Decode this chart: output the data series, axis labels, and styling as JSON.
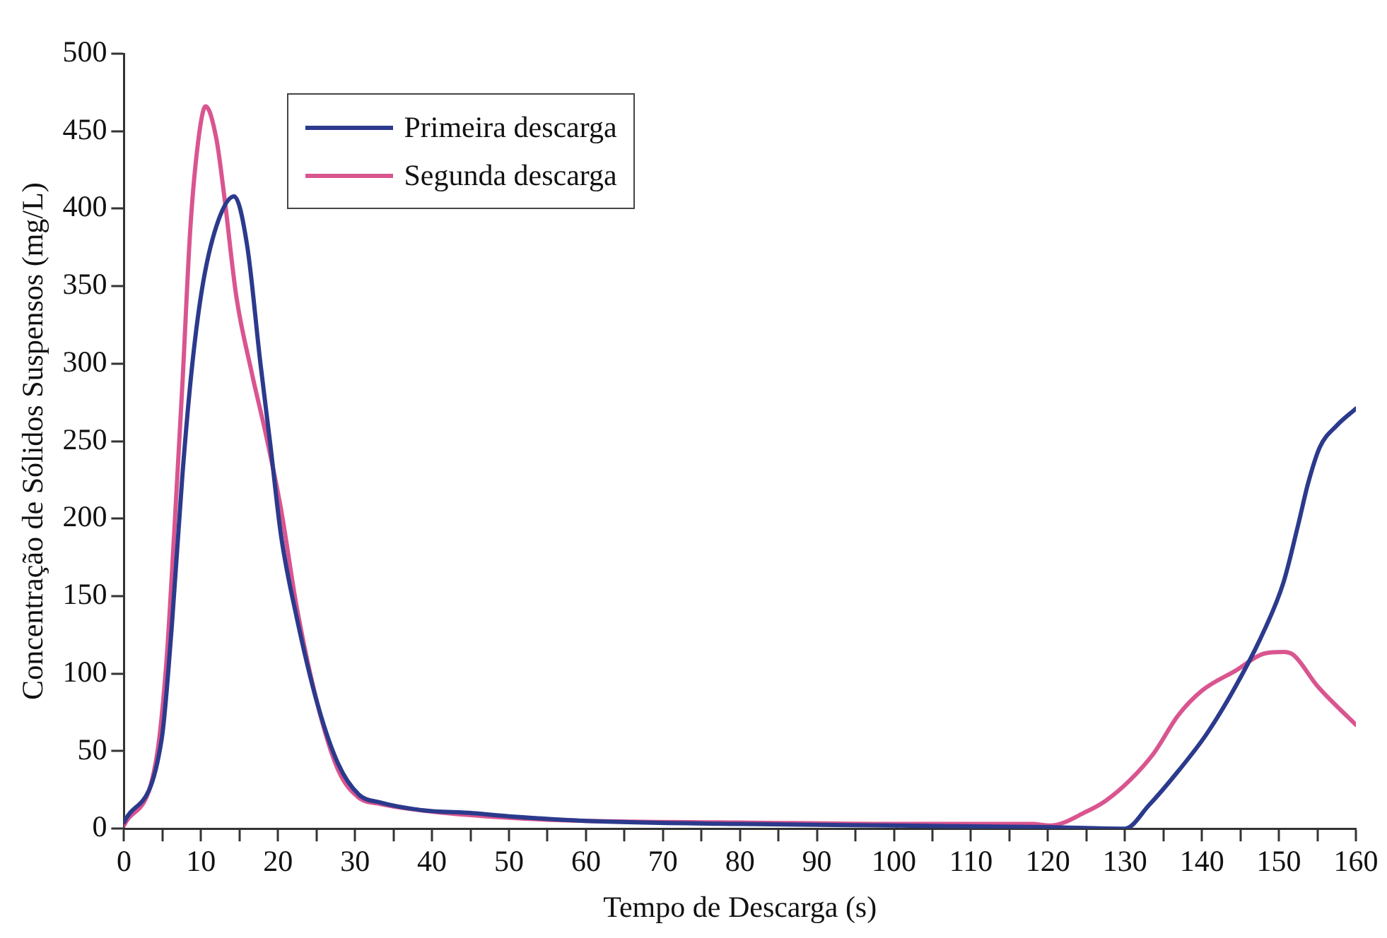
{
  "chart_data": {
    "type": "line",
    "xlabel": "Tempo de Descarga (s)",
    "ylabel": "Concentração de Sólidos Suspensos (mg/L)",
    "xlim": [
      0,
      160
    ],
    "xticks": [
      0,
      {
        "value": 5,
        "label": null
      },
      10,
      {
        "value": 15,
        "label": null
      },
      20,
      {
        "value": 25,
        "label": null
      },
      30,
      {
        "value": 35,
        "label": null
      },
      40,
      {
        "value": 45,
        "label": null
      },
      50,
      {
        "value": 55,
        "label": null
      },
      60,
      {
        "value": 65,
        "label": null
      },
      70,
      {
        "value": 75,
        "label": null
      },
      80,
      {
        "value": 85,
        "label": null
      },
      90,
      {
        "value": 95,
        "label": null
      },
      100,
      {
        "value": 105,
        "label": null
      },
      110,
      {
        "value": 115,
        "label": null
      },
      120,
      {
        "value": 125,
        "label": null
      },
      130,
      {
        "value": 135,
        "label": null
      },
      140,
      {
        "value": 145,
        "label": null
      },
      150,
      {
        "value": 155,
        "label": null
      },
      160
    ],
    "ylim": [
      0,
      500
    ],
    "yticks": [
      0,
      50,
      100,
      150,
      200,
      250,
      300,
      350,
      400,
      450,
      500
    ],
    "grid": false,
    "legend": "top left",
    "marker": "none",
    "line_style": "solid",
    "series": [
      {
        "name": "Primeira descarga",
        "color": "#2b3a8c",
        "x": [
          0,
          4.9,
          6.2,
          7.6,
          8.9,
          10.3,
          12.3,
          14.3,
          16,
          17.7,
          19,
          20.4,
          22.4,
          25.1,
          27.8,
          30.5,
          33.2,
          38.6,
          45.3,
          50,
          60,
          80,
          100,
          120,
          130,
          133.1,
          136.9,
          140.6,
          144.4,
          148.1,
          150.6,
          152.5,
          153.8,
          155.3,
          157.5,
          160
        ],
        "values": [
          4,
          58,
          130,
          229,
          301,
          353,
          393,
          408,
          376,
          301,
          248,
          189,
          137,
          81,
          42,
          22,
          17,
          12,
          10,
          8,
          5,
          3,
          2,
          1,
          0,
          15,
          37,
          61,
          92,
          128,
          159,
          196,
          223,
          246,
          260,
          271
        ]
      },
      {
        "name": "Segunda descarga",
        "color": "#d9558f",
        "x": [
          0,
          4.2,
          5.5,
          6.5,
          7.6,
          8.6,
          9.6,
          10.6,
          12,
          13,
          14.6,
          16.6,
          18.4,
          20.4,
          22.4,
          25.1,
          27.8,
          30.5,
          33.2,
          40,
          50,
          60,
          80,
          100,
          118,
          120.3,
          125,
          127.5,
          130.6,
          133.8,
          136.9,
          140,
          144.4,
          148.1,
          150.6,
          151.9,
          155,
          160
        ],
        "values": [
          2,
          45,
          107,
          189,
          288,
          386,
          442,
          466,
          445,
          409,
          343,
          294,
          255,
          206,
          144,
          81,
          38,
          20,
          16,
          11,
          7,
          5,
          4,
          3,
          3,
          2,
          11,
          18,
          31,
          49,
          73,
          89,
          102,
          113,
          114,
          112,
          92,
          67
        ]
      }
    ]
  }
}
